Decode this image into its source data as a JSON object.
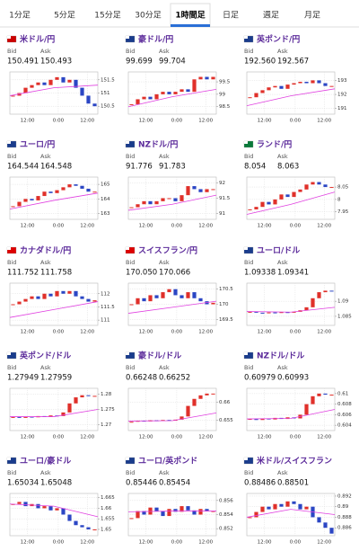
{
  "tabs": [
    "1分足",
    "5分足",
    "15分足",
    "30分足",
    "1時間足",
    "日足",
    "週足",
    "月足"
  ],
  "active_tab": 4,
  "bid_label": "Bid",
  "ask_label": "Ask",
  "time_labels": [
    "12:00",
    "0:00",
    "12:00"
  ],
  "cards": [
    {
      "title": "米ドル/円",
      "bid": "150.491",
      "ask": "150.493",
      "chart": {
        "ylim": [
          150.2,
          151.8
        ],
        "yticks": [
          151.5,
          151,
          150.5
        ],
        "closes": [
          150.9,
          151.0,
          151.2,
          151.3,
          151.4,
          151.3,
          151.5,
          151.6,
          151.4,
          151.5,
          151.2,
          150.9,
          150.6,
          150.5
        ],
        "ma": [
          150.9,
          151.2,
          151.3
        ]
      }
    },
    {
      "title": "豪ドル/円",
      "bid": "99.699",
      "ask": "99.704",
      "chart": {
        "ylim": [
          98.2,
          99.9
        ],
        "yticks": [
          99.5,
          99,
          98.5
        ],
        "closes": [
          98.6,
          98.8,
          98.9,
          98.8,
          99.0,
          99.1,
          99.0,
          99.1,
          99.2,
          99.1,
          99.6,
          99.7,
          99.6,
          99.7
        ],
        "ma": [
          98.5,
          98.9,
          99.2
        ]
      }
    },
    {
      "title": "英ポンド/円",
      "bid": "192.560",
      "ask": "192.567",
      "chart": {
        "ylim": [
          190.6,
          193.6
        ],
        "yticks": [
          193,
          192,
          191
        ],
        "closes": [
          191.8,
          192.1,
          192.3,
          192.5,
          192.6,
          192.4,
          192.7,
          192.8,
          192.9,
          192.8,
          193.0,
          192.8,
          192.6,
          192.6
        ],
        "ma": [
          191.2,
          191.9,
          192.4
        ]
      }
    },
    {
      "title": "ユーロ/円",
      "bid": "164.544",
      "ask": "164.548",
      "chart": {
        "ylim": [
          162.6,
          165.5
        ],
        "yticks": [
          165,
          164,
          163
        ],
        "closes": [
          163.5,
          163.8,
          164.0,
          163.9,
          164.2,
          164.5,
          164.4,
          164.6,
          164.8,
          165.0,
          164.9,
          164.7,
          164.5,
          164.5
        ],
        "ma": [
          163.3,
          163.9,
          164.4
        ]
      }
    },
    {
      "title": "NZドル/円",
      "bid": "91.776",
      "ask": "91.783",
      "chart": {
        "ylim": [
          90.8,
          92.2
        ],
        "yticks": [
          92,
          91.5,
          91
        ],
        "closes": [
          91.2,
          91.3,
          91.4,
          91.3,
          91.4,
          91.5,
          91.5,
          91.4,
          91.6,
          91.9,
          91.8,
          91.7,
          91.8,
          91.8
        ],
        "ma": [
          91.1,
          91.3,
          91.6
        ]
      }
    },
    {
      "title": "ランド/円",
      "bid": "8.054",
      "ask": "8.063",
      "chart": {
        "ylim": [
          7.92,
          8.09
        ],
        "yticks": [
          8.05,
          8,
          7.95
        ],
        "closes": [
          7.96,
          7.97,
          7.99,
          7.98,
          8.0,
          8.02,
          8.01,
          8.03,
          8.04,
          8.06,
          8.07,
          8.06,
          8.05,
          8.05
        ],
        "ma": [
          7.94,
          7.98,
          8.03
        ]
      }
    },
    {
      "title": "カナダドル/円",
      "bid": "111.752",
      "ask": "111.758",
      "chart": {
        "ylim": [
          110.8,
          112.4
        ],
        "yticks": [
          112,
          111.5,
          111
        ],
        "closes": [
          111.6,
          111.7,
          111.8,
          111.9,
          111.8,
          112.0,
          111.9,
          112.1,
          112.0,
          112.1,
          111.9,
          111.8,
          111.7,
          111.75
        ],
        "ma": [
          111.1,
          111.4,
          111.7
        ]
      }
    },
    {
      "title": "スイスフラン/円",
      "bid": "170.050",
      "ask": "170.066",
      "chart": {
        "ylim": [
          169.3,
          170.7
        ],
        "yticks": [
          170.5,
          170,
          169.5
        ],
        "closes": [
          170.0,
          170.2,
          170.1,
          170.3,
          170.2,
          170.4,
          170.5,
          170.3,
          170.2,
          170.4,
          170.2,
          170.1,
          170.0,
          170.05
        ],
        "ma": [
          169.7,
          169.9,
          170.1
        ]
      }
    },
    {
      "title": "ユーロ/ドル",
      "bid": "1.09338",
      "ask": "1.09341",
      "chart": {
        "ylim": [
          1.082,
          1.096
        ],
        "yticks": [
          1.09,
          1.085
        ],
        "closes": [
          1.0865,
          1.0862,
          1.086,
          1.0863,
          1.0861,
          1.0864,
          1.0862,
          1.0865,
          1.087,
          1.088,
          1.091,
          1.093,
          1.0935,
          1.0934
        ],
        "ma": [
          1.0866,
          1.0864,
          1.088
        ]
      }
    },
    {
      "title": "英ポンド/ドル",
      "bid": "1.27949",
      "ask": "1.27959",
      "chart": {
        "ylim": [
          1.268,
          1.282
        ],
        "yticks": [
          1.28,
          1.275,
          1.27
        ],
        "closes": [
          1.2725,
          1.2722,
          1.2726,
          1.2724,
          1.2728,
          1.2726,
          1.273,
          1.2728,
          1.274,
          1.277,
          1.279,
          1.2797,
          1.2795,
          1.2795
        ],
        "ma": [
          1.2726,
          1.2726,
          1.275
        ]
      }
    },
    {
      "title": "豪ドル/ドル",
      "bid": "0.66248",
      "ask": "0.66252",
      "chart": {
        "ylim": [
          0.652,
          0.664
        ],
        "yticks": [
          0.66,
          0.655
        ],
        "closes": [
          0.6545,
          0.6548,
          0.6546,
          0.6549,
          0.6547,
          0.655,
          0.6548,
          0.6551,
          0.656,
          0.659,
          0.661,
          0.662,
          0.6625,
          0.6625
        ],
        "ma": [
          0.6547,
          0.6548,
          0.657
        ]
      }
    },
    {
      "title": "NZドル/ドル",
      "bid": "0.60979",
      "ask": "0.60993",
      "chart": {
        "ylim": [
          0.603,
          0.611
        ],
        "yticks": [
          0.61,
          0.608,
          0.606,
          0.604
        ],
        "closes": [
          0.6052,
          0.605,
          0.6053,
          0.6051,
          0.6054,
          0.6052,
          0.6055,
          0.6053,
          0.606,
          0.608,
          0.6095,
          0.61,
          0.6098,
          0.6098
        ],
        "ma": [
          0.6052,
          0.6053,
          0.607
        ]
      }
    },
    {
      "title": "ユーロ/豪ドル",
      "bid": "1.65034",
      "ask": "1.65048",
      "chart": {
        "ylim": [
          1.647,
          1.667
        ],
        "yticks": [
          1.665,
          1.66,
          1.655,
          1.65
        ],
        "closes": [
          1.662,
          1.663,
          1.661,
          1.662,
          1.66,
          1.661,
          1.659,
          1.66,
          1.657,
          1.654,
          1.652,
          1.651,
          1.65,
          1.65
        ],
        "ma": [
          1.662,
          1.661,
          1.656
        ]
      }
    },
    {
      "title": "ユーロ/英ポンド",
      "bid": "0.85446",
      "ask": "0.85454",
      "chart": {
        "ylim": [
          0.851,
          0.857
        ],
        "yticks": [
          0.856,
          0.854,
          0.852
        ],
        "closes": [
          0.8535,
          0.8545,
          0.854,
          0.855,
          0.8545,
          0.8538,
          0.8548,
          0.8544,
          0.8552,
          0.8546,
          0.854,
          0.8548,
          0.8545,
          0.8545
        ],
        "ma": [
          0.8544,
          0.8545,
          0.8545
        ]
      }
    },
    {
      "title": "米ドル/スイスフラン",
      "bid": "0.88486",
      "ask": "0.88501",
      "chart": {
        "ylim": [
          0.8845,
          0.8925
        ],
        "yticks": [
          0.892,
          0.89,
          0.888,
          0.886
        ],
        "closes": [
          0.888,
          0.889,
          0.89,
          0.8895,
          0.8905,
          0.89,
          0.891,
          0.8905,
          0.8895,
          0.89,
          0.888,
          0.887,
          0.886,
          0.8849
        ],
        "ma": [
          0.888,
          0.8895,
          0.8885
        ]
      }
    }
  ]
}
